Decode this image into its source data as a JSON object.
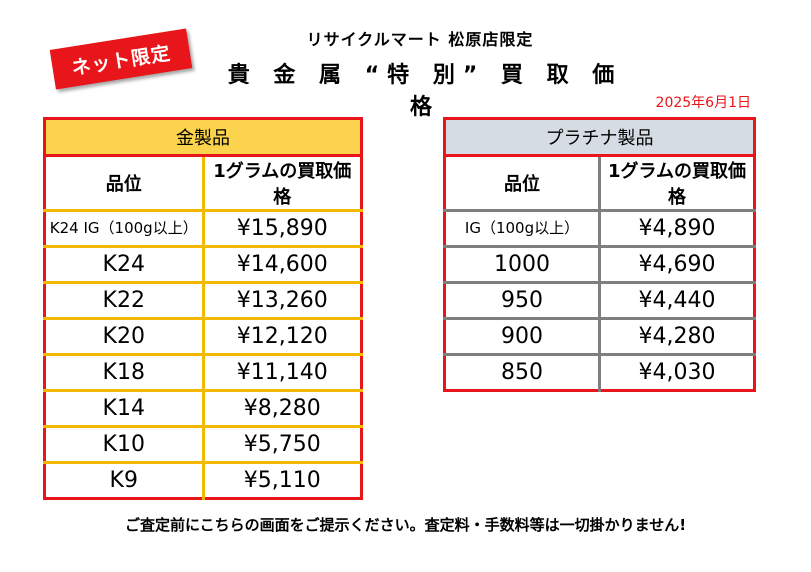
{
  "badge": "ネット限定",
  "store_title": "リサイクルマート 松原店限定",
  "headline": "貴 金 属 “特 別” 買 取 価 格",
  "date": "2025年6月1日",
  "gold_table": {
    "title": "金製品",
    "col_grade": "品位",
    "col_price": "1グラムの買取価格",
    "rows": [
      {
        "grade": "K24 IG（100g以上）",
        "price": "¥15,890"
      },
      {
        "grade": "K24",
        "price": "¥14,600"
      },
      {
        "grade": "K22",
        "price": "¥13,260"
      },
      {
        "grade": "K20",
        "price": "¥12,120"
      },
      {
        "grade": "K18",
        "price": "¥11,140"
      },
      {
        "grade": "K14",
        "price": "¥8,280"
      },
      {
        "grade": "K10",
        "price": "¥5,750"
      },
      {
        "grade": "K9",
        "price": "¥5,110"
      }
    ]
  },
  "platinum_table": {
    "title": "プラチナ製品",
    "col_grade": "品位",
    "col_price": "1グラムの買取価格",
    "rows": [
      {
        "grade": "IG（100g以上）",
        "price": "¥4,890"
      },
      {
        "grade": "1000",
        "price": "¥4,690"
      },
      {
        "grade": "950",
        "price": "¥4,440"
      },
      {
        "grade": "900",
        "price": "¥4,280"
      },
      {
        "grade": "850",
        "price": "¥4,030"
      }
    ]
  },
  "notice": "ご査定前にこちらの画面をご提示ください。査定料・手数料等は一切掛かりません!",
  "colors": {
    "red": "#e8161b",
    "gold_header": "#fbd34c",
    "gold_line": "#f3b800",
    "plat_header": "#d6dce4",
    "plat_line": "#7f7f7f"
  }
}
